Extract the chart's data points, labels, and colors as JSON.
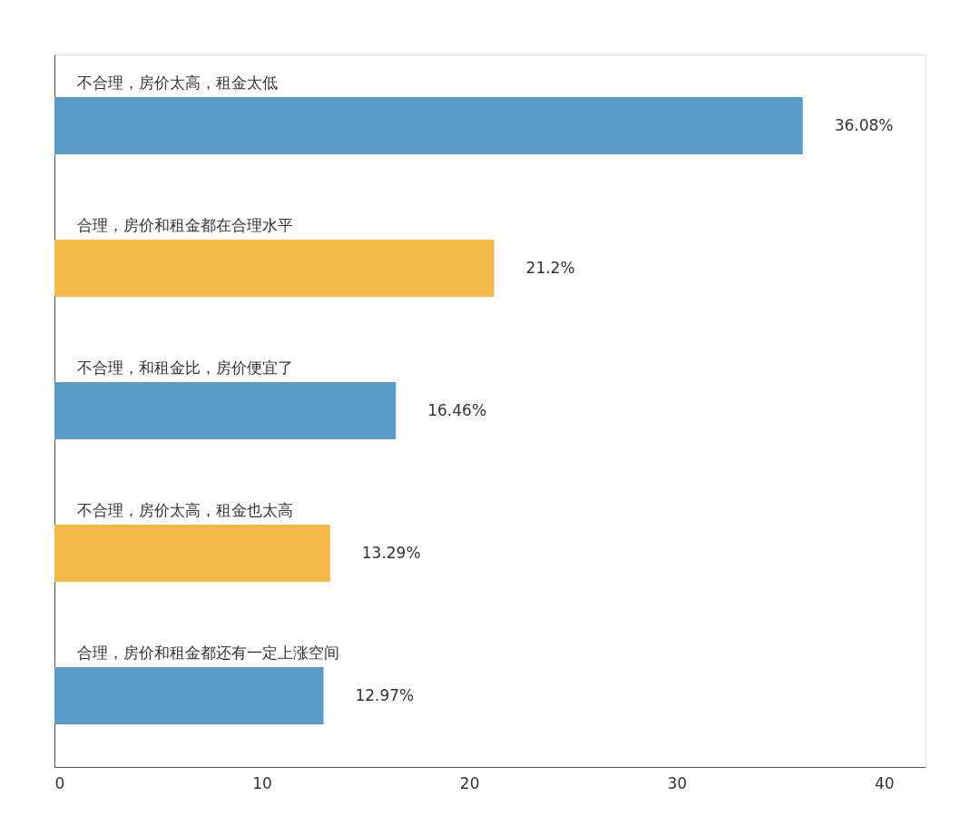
{
  "chart_data": {
    "type": "bar",
    "orientation": "horizontal",
    "categories": [
      "不合理，房价太高，租金太低",
      "合理，房价和租金都在合理水平",
      "不合理，和租金比，房价便宜了",
      "不合理，房价太高，租金也太高",
      "合理，房价和租金都还有一定上涨空间"
    ],
    "values": [
      36.08,
      21.2,
      16.46,
      13.29,
      12.97
    ],
    "value_labels": [
      "36.08%",
      "21.2%",
      "16.46%",
      "13.29%",
      "12.97%"
    ],
    "colors": [
      "#5b9bc8",
      "#f5b94a",
      "#5b9bc8",
      "#f5b94a",
      "#5b9bc8"
    ],
    "xlim": [
      0,
      42
    ],
    "xticks": [
      0,
      10,
      20,
      30,
      40
    ],
    "grid": false,
    "tick_labels": "x"
  }
}
